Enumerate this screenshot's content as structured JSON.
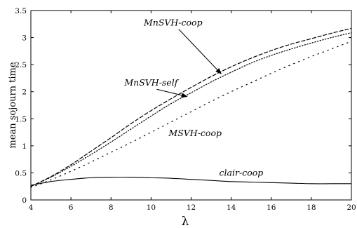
{
  "chart_data": {
    "type": "line",
    "title": "",
    "xlabel": "λ",
    "ylabel": "mean sojourn time",
    "xlim": [
      4,
      20
    ],
    "ylim": [
      0,
      3.5
    ],
    "xticks": [
      4,
      6,
      8,
      10,
      12,
      14,
      16,
      18,
      20
    ],
    "yticks": [
      0,
      0.5,
      1,
      1.5,
      2,
      2.5,
      3,
      3.5
    ],
    "xtick_labels": [
      "4",
      "6",
      "8",
      "10",
      "12",
      "14",
      "16",
      "18",
      "20"
    ],
    "ytick_labels": [
      "0",
      "0.5",
      "1",
      "1.5",
      "2",
      "2.5",
      "3",
      "3.5"
    ],
    "grid": false,
    "x": [
      4,
      5,
      6,
      7,
      8,
      9,
      10,
      11,
      12,
      13,
      14,
      15,
      16,
      17,
      18,
      19,
      20
    ],
    "series": [
      {
        "name": "MnSVH-coop",
        "style": "dashed",
        "color": "#000000",
        "values": [
          0.25,
          0.43,
          0.65,
          0.9,
          1.15,
          1.41,
          1.65,
          1.87,
          2.08,
          2.28,
          2.46,
          2.62,
          2.76,
          2.88,
          2.98,
          3.08,
          3.17
        ]
      },
      {
        "name": "MnSVH-self",
        "style": "dotted",
        "color": "#000000",
        "values": [
          0.25,
          0.42,
          0.62,
          0.84,
          1.07,
          1.31,
          1.55,
          1.78,
          1.98,
          2.18,
          2.36,
          2.53,
          2.67,
          2.79,
          2.9,
          3.0,
          3.09
        ]
      },
      {
        "name": "MSVH-coop",
        "style": "sparse-dotted",
        "color": "#000000",
        "values": [
          0.23,
          0.37,
          0.53,
          0.7,
          0.88,
          1.06,
          1.25,
          1.44,
          1.63,
          1.82,
          2.0,
          2.17,
          2.34,
          2.5,
          2.65,
          2.79,
          2.93
        ]
      },
      {
        "name": "clair-coop",
        "style": "solid",
        "color": "#000000",
        "values": [
          0.27,
          0.34,
          0.38,
          0.41,
          0.42,
          0.42,
          0.41,
          0.4,
          0.38,
          0.36,
          0.34,
          0.33,
          0.32,
          0.31,
          0.3,
          0.3,
          0.3
        ]
      }
    ],
    "annotations": [
      {
        "text": "MnSVH-coop",
        "series": 0,
        "label_x": 11.1,
        "label_y": 3.22,
        "arrow_to_x": 13.5,
        "arrow_to_y": 2.33
      },
      {
        "text": "MnSVH-self",
        "series": 1,
        "label_x": 10.0,
        "label_y": 2.11,
        "arrow_to_x": 11.8,
        "arrow_to_y": 1.91
      },
      {
        "text": "MSVH-coop",
        "series": 2,
        "label_x": 12.2,
        "label_y": 1.18,
        "arrow_to_x": null,
        "arrow_to_y": null
      },
      {
        "text": "clair-coop",
        "series": 3,
        "label_x": 14.5,
        "label_y": 0.45,
        "arrow_to_x": null,
        "arrow_to_y": null
      }
    ]
  }
}
